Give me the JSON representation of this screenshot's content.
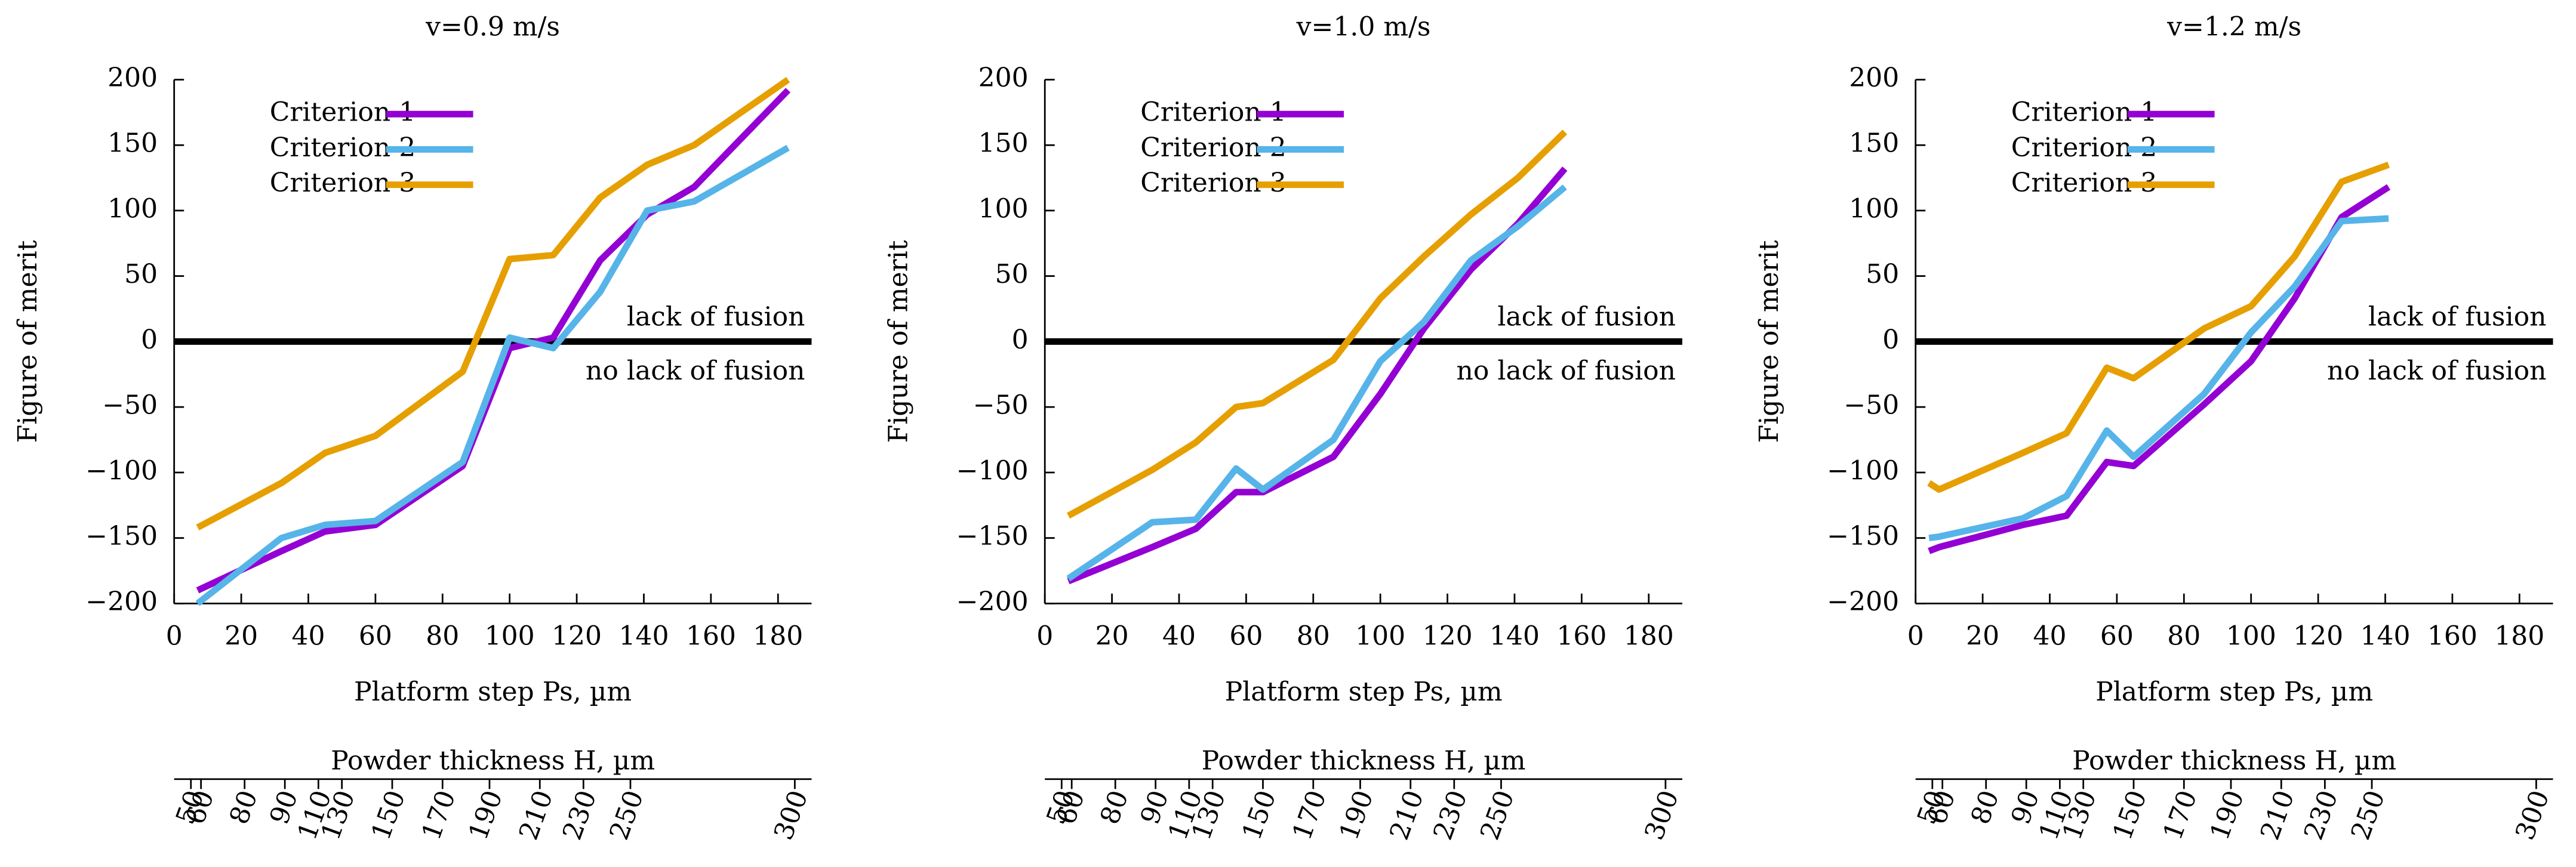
{
  "chart_data": [
    {
      "type": "line",
      "title": "v=0.9 m/s",
      "xlabel": "Platform step Ps, µm",
      "ylabel": "Figure of merit",
      "x": [
        7,
        32,
        45,
        60,
        86,
        100,
        113,
        127,
        141,
        155,
        183
      ],
      "series": [
        {
          "name": "Criterion 1",
          "color": "#9400d3",
          "values": [
            -190,
            -160,
            -145,
            -140,
            -95,
            -5,
            3,
            62,
            97,
            118,
            192
          ]
        },
        {
          "name": "Criterion 2",
          "color": "#56b4e9",
          "values": [
            -200,
            -150,
            -140,
            -137,
            -92,
            3,
            -5,
            38,
            100,
            107,
            148
          ]
        },
        {
          "name": "Criterion 3",
          "color": "#e69f00",
          "values": [
            -142,
            -108,
            -85,
            -72,
            -23,
            63,
            66,
            110,
            135,
            150,
            200
          ]
        }
      ],
      "xlim": [
        0,
        190
      ],
      "ylim": [
        -200,
        200
      ],
      "xticks": [
        0,
        20,
        40,
        60,
        80,
        100,
        120,
        140,
        160,
        180
      ],
      "yticks": [
        {
          "value": -200,
          "label": "−200"
        },
        {
          "value": -150,
          "label": "−150"
        },
        {
          "value": -100,
          "label": "−100"
        },
        {
          "value": -50,
          "label": "−50"
        },
        0,
        50,
        100,
        150,
        200
      ],
      "hline": 0,
      "annotations": [
        "lack of fusion",
        "no lack of fusion"
      ],
      "x2label": "Powder thickness H, µm",
      "x2ticks": [
        {
          "value": 5,
          "label": "50"
        },
        {
          "value": 8,
          "label": "60"
        },
        {
          "value": 21,
          "label": "80"
        },
        {
          "value": 33,
          "label": "90"
        },
        {
          "value": 43,
          "label": "110"
        },
        {
          "value": 50,
          "label": "130"
        },
        {
          "value": 65,
          "label": "150"
        },
        {
          "value": 80,
          "label": "170"
        },
        {
          "value": 94,
          "label": "190"
        },
        {
          "value": 109,
          "label": "210"
        },
        {
          "value": 122,
          "label": "230"
        },
        {
          "value": 136,
          "label": "250"
        },
        {
          "value": 185,
          "label": "300"
        }
      ]
    },
    {
      "type": "line",
      "title": "v=1.0 m/s",
      "xlabel": "Platform step Ps, µm",
      "ylabel": "Figure of merit",
      "x": [
        7,
        32,
        45,
        57,
        65,
        86,
        100,
        113,
        127,
        141,
        155
      ],
      "series": [
        {
          "name": "Criterion 1",
          "color": "#9400d3",
          "values": [
            -183,
            -157,
            -143,
            -115,
            -115,
            -88,
            -40,
            10,
            55,
            90,
            132
          ]
        },
        {
          "name": "Criterion 2",
          "color": "#56b4e9",
          "values": [
            -181,
            -138,
            -136,
            -97,
            -113,
            -75,
            -15,
            15,
            62,
            88,
            118
          ]
        },
        {
          "name": "Criterion 3",
          "color": "#e69f00",
          "values": [
            -133,
            -98,
            -77,
            -50,
            -47,
            -14,
            33,
            65,
            97,
            125,
            160
          ]
        }
      ],
      "xlim": [
        0,
        190
      ],
      "ylim": [
        -200,
        200
      ],
      "xticks": [
        0,
        20,
        40,
        60,
        80,
        100,
        120,
        140,
        160,
        180
      ],
      "yticks": [
        {
          "value": -200,
          "label": "−200"
        },
        {
          "value": -150,
          "label": "−150"
        },
        {
          "value": -100,
          "label": "−100"
        },
        {
          "value": -50,
          "label": "−50"
        },
        0,
        50,
        100,
        150,
        200
      ],
      "hline": 0,
      "annotations": [
        "lack of fusion",
        "no lack of fusion"
      ],
      "x2label": "Powder thickness H, µm",
      "x2ticks": [
        {
          "value": 5,
          "label": "50"
        },
        {
          "value": 8,
          "label": "60"
        },
        {
          "value": 21,
          "label": "80"
        },
        {
          "value": 33,
          "label": "90"
        },
        {
          "value": 43,
          "label": "110"
        },
        {
          "value": 50,
          "label": "130"
        },
        {
          "value": 65,
          "label": "150"
        },
        {
          "value": 80,
          "label": "170"
        },
        {
          "value": 94,
          "label": "190"
        },
        {
          "value": 109,
          "label": "210"
        },
        {
          "value": 122,
          "label": "230"
        },
        {
          "value": 136,
          "label": "250"
        },
        {
          "value": 185,
          "label": "300"
        }
      ]
    },
    {
      "type": "line",
      "title": "v=1.2 m/s",
      "xlabel": "Platform step Ps, µm",
      "ylabel": "Figure of merit",
      "x": [
        4,
        7,
        32,
        45,
        57,
        65,
        86,
        100,
        113,
        127,
        141
      ],
      "series": [
        {
          "name": "Criterion 1",
          "color": "#9400d3",
          "values": [
            -160,
            -157,
            -140,
            -133,
            -92,
            -95,
            -48,
            -15,
            33,
            95,
            118
          ]
        },
        {
          "name": "Criterion 2",
          "color": "#56b4e9",
          "values": [
            -150,
            -149,
            -135,
            -118,
            -68,
            -88,
            -40,
            7,
            42,
            92,
            94
          ]
        },
        {
          "name": "Criterion 3",
          "color": "#e69f00",
          "values": [
            -108,
            -113,
            -85,
            -70,
            -20,
            -28,
            10,
            27,
            65,
            122,
            135
          ]
        }
      ],
      "xlim": [
        0,
        190
      ],
      "ylim": [
        -200,
        200
      ],
      "xticks": [
        0,
        20,
        40,
        60,
        80,
        100,
        120,
        140,
        160,
        180
      ],
      "yticks": [
        {
          "value": -200,
          "label": "−200"
        },
        {
          "value": -150,
          "label": "−150"
        },
        {
          "value": -100,
          "label": "−100"
        },
        {
          "value": -50,
          "label": "−50"
        },
        0,
        50,
        100,
        150,
        200
      ],
      "hline": 0,
      "annotations": [
        "lack of fusion",
        "no lack of fusion"
      ],
      "x2label": "Powder thickness H, µm",
      "x2ticks": [
        {
          "value": 5,
          "label": "50"
        },
        {
          "value": 8,
          "label": "60"
        },
        {
          "value": 21,
          "label": "80"
        },
        {
          "value": 33,
          "label": "90"
        },
        {
          "value": 43,
          "label": "110"
        },
        {
          "value": 50,
          "label": "130"
        },
        {
          "value": 65,
          "label": "150"
        },
        {
          "value": 80,
          "label": "170"
        },
        {
          "value": 94,
          "label": "190"
        },
        {
          "value": 109,
          "label": "210"
        },
        {
          "value": 122,
          "label": "230"
        },
        {
          "value": 136,
          "label": "250"
        },
        {
          "value": 185,
          "label": "300"
        }
      ]
    }
  ]
}
